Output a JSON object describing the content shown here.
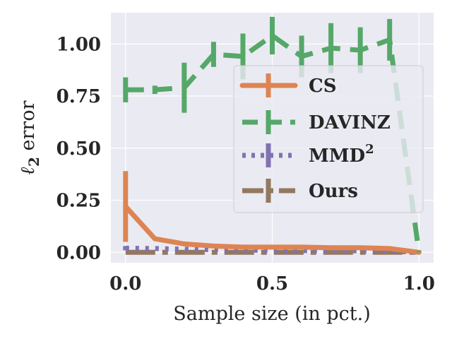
{
  "chart_data": {
    "type": "line",
    "title": "",
    "xlabel": "Sample size (in pct.)",
    "ylabel_main": "ℓ",
    "ylabel_sub": "2",
    "ylabel_rest": " error",
    "xlim": [
      -0.05,
      1.05
    ],
    "ylim": [
      -0.05,
      1.15
    ],
    "xticks": [
      0.0,
      0.5,
      1.0
    ],
    "xtick_labels": [
      "0.0",
      "0.5",
      "1.0"
    ],
    "yticks": [
      0.0,
      0.25,
      0.5,
      0.75,
      1.0
    ],
    "ytick_labels": [
      "0.00",
      "0.25",
      "0.50",
      "0.75",
      "1.00"
    ],
    "grid": true,
    "legend_position": "center-right",
    "series": [
      {
        "name": "CS",
        "label_main": "CS",
        "label_sup": "",
        "color": "#dd8452",
        "style": "solid",
        "x": [
          0.0,
          0.1,
          0.2,
          0.3,
          0.4,
          0.5,
          0.6,
          0.7,
          0.8,
          0.9,
          1.0
        ],
        "y": [
          0.22,
          0.065,
          0.04,
          0.03,
          0.025,
          0.025,
          0.025,
          0.022,
          0.022,
          0.018,
          0.0
        ],
        "err": [
          0.17,
          0.0,
          0.0,
          0.0,
          0.0,
          0.0,
          0.0,
          0.0,
          0.0,
          0.0,
          0.0
        ]
      },
      {
        "name": "DAVINZ",
        "label_main": "DAVINZ",
        "label_sup": "",
        "color": "#55a868",
        "style": "dashed",
        "x": [
          0.0,
          0.1,
          0.2,
          0.3,
          0.4,
          0.5,
          0.6,
          0.7,
          0.8,
          0.9,
          1.0
        ],
        "y": [
          0.78,
          0.78,
          0.79,
          0.95,
          0.94,
          1.04,
          0.94,
          0.98,
          0.97,
          1.02,
          0.0
        ],
        "err": [
          0.06,
          0.02,
          0.12,
          0.06,
          0.11,
          0.09,
          0.1,
          0.12,
          0.11,
          0.1,
          0.0
        ]
      },
      {
        "name": "MMD2",
        "label_main": "MMD",
        "label_sup": "2",
        "color": "#8172b3",
        "style": "dotted",
        "x": [
          0.0,
          0.1,
          0.2,
          0.3,
          0.4,
          0.5,
          0.6,
          0.7,
          0.8,
          0.9,
          1.0
        ],
        "y": [
          0.02,
          0.018,
          0.015,
          0.012,
          0.01,
          0.01,
          0.008,
          0.008,
          0.007,
          0.006,
          0.0
        ],
        "err": [
          0.01,
          0.0,
          0.0,
          0.0,
          0.0,
          0.0,
          0.0,
          0.0,
          0.0,
          0.0,
          0.0
        ]
      },
      {
        "name": "Ours",
        "label_main": "Ours",
        "label_sup": "",
        "color": "#937860",
        "style": "dashdot",
        "x": [
          0.0,
          0.1,
          0.2,
          0.3,
          0.4,
          0.5,
          0.6,
          0.7,
          0.8,
          0.9,
          1.0
        ],
        "y": [
          0.0,
          0.0,
          0.0,
          0.0,
          0.0,
          0.0,
          0.0,
          0.0,
          0.0,
          0.0,
          0.0
        ],
        "err": [
          0.0,
          0.0,
          0.0,
          0.0,
          0.0,
          0.0,
          0.0,
          0.0,
          0.0,
          0.0,
          0.0
        ]
      }
    ]
  }
}
